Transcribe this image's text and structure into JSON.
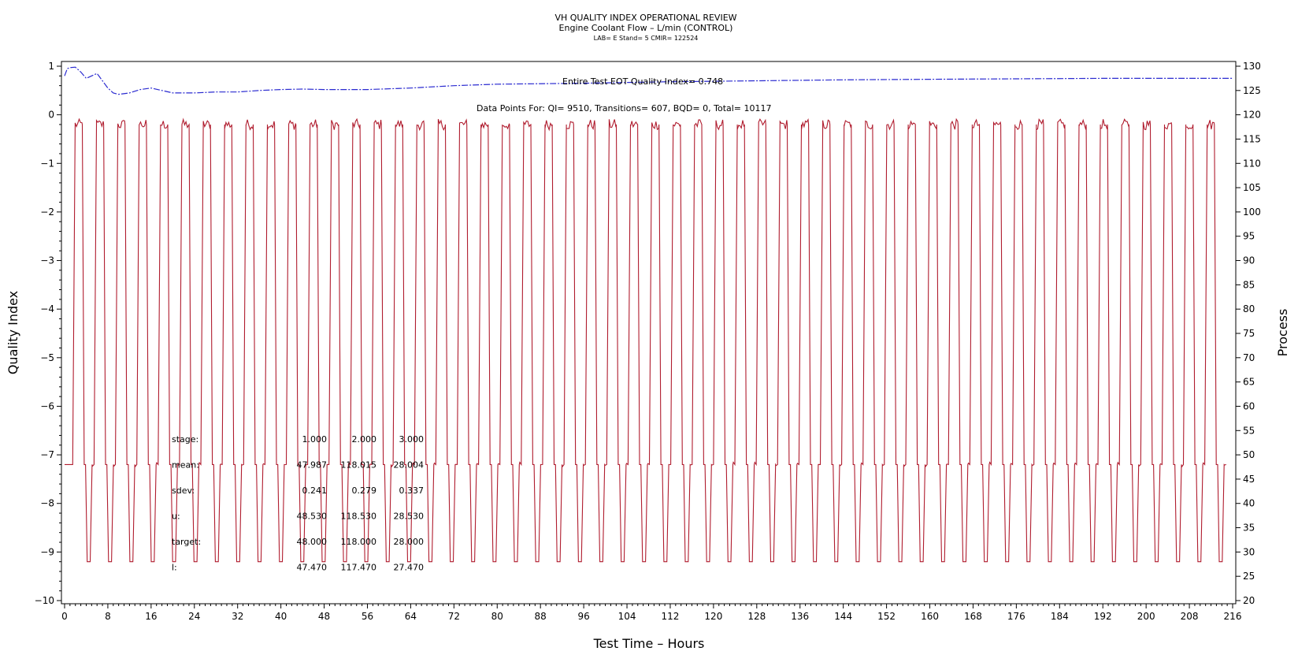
{
  "chart_data": {
    "type": "line",
    "title": "VH QUALITY INDEX OPERATIONAL REVIEW",
    "subtitle": "Engine Coolant Flow – L/min (CONTROL)",
    "subtitle2": "LAB= E Stand= 5 CMIR= 122524",
    "xlabel": "Test Time – Hours",
    "ylabel_left": "Quality Index",
    "ylabel_right": "Process",
    "xlim": [
      0,
      216
    ],
    "ylim_left": [
      -10,
      1
    ],
    "ylim_right": [
      20,
      130
    ],
    "x_ticks": [
      "0",
      "8",
      "16",
      "24",
      "32",
      "40",
      "48",
      "56",
      "64",
      "72",
      "80",
      "88",
      "96",
      "104",
      "112",
      "120",
      "128",
      "136",
      "144",
      "152",
      "160",
      "168",
      "176",
      "184",
      "192",
      "200",
      "208",
      "216"
    ],
    "yleft_ticks": [
      "1",
      "0",
      "-1",
      "-2",
      "-3",
      "-4",
      "-5",
      "-6",
      "-7",
      "-8",
      "-9",
      "-10"
    ],
    "yright_ticks": [
      "130",
      "125",
      "120",
      "115",
      "110",
      "105",
      "100",
      "95",
      "90",
      "85",
      "80",
      "75",
      "70",
      "65",
      "60",
      "55",
      "50",
      "45",
      "40",
      "35",
      "30",
      "25",
      "20"
    ],
    "annotation_qi": "Entire Test EOT Quality Index=  0.748",
    "annotation_points": "Data Points For: QI=  9510, Transitions=   607, BQD=     0, Total= 10117",
    "series": [
      {
        "name": "Quality Index",
        "axis": "left",
        "color": "#2a2ad0",
        "x": [
          0,
          0.5,
          1,
          2,
          3,
          4,
          5,
          6,
          7,
          8,
          9,
          10,
          12,
          14,
          16,
          18,
          20,
          24,
          28,
          32,
          36,
          40,
          44,
          48,
          56,
          64,
          72,
          80,
          96,
          112,
          128,
          144,
          160,
          176,
          192,
          216
        ],
        "y": [
          0.8,
          0.95,
          0.97,
          0.98,
          0.88,
          0.75,
          0.8,
          0.85,
          0.7,
          0.55,
          0.45,
          0.42,
          0.45,
          0.52,
          0.55,
          0.5,
          0.45,
          0.45,
          0.47,
          0.47,
          0.5,
          0.52,
          0.53,
          0.52,
          0.52,
          0.55,
          0.6,
          0.63,
          0.65,
          0.68,
          0.7,
          0.72,
          0.73,
          0.74,
          0.75,
          0.75
        ]
      },
      {
        "name": "Process",
        "axis": "right",
        "color": "#b01c2e",
        "cycle_start": 1.5,
        "cycle_period": 3.95,
        "cycles": 54,
        "levels": [
          48,
          118,
          28
        ]
      }
    ],
    "stats_table": {
      "headers": [
        "stage:",
        "1.000",
        "2.000",
        "3.000"
      ],
      "rows": [
        {
          "label": "mean:",
          "values": [
            "47.987",
            "118.015",
            "28.004"
          ]
        },
        {
          "label": "sdev:",
          "values": [
            "0.241",
            "0.279",
            "0.337"
          ]
        },
        {
          "label": "u:",
          "values": [
            "48.530",
            "118.530",
            "28.530"
          ]
        },
        {
          "label": "target:",
          "values": [
            "48.000",
            "118.000",
            "28.000"
          ]
        },
        {
          "label": "l:",
          "values": [
            "47.470",
            "117.470",
            "27.470"
          ]
        }
      ]
    }
  }
}
